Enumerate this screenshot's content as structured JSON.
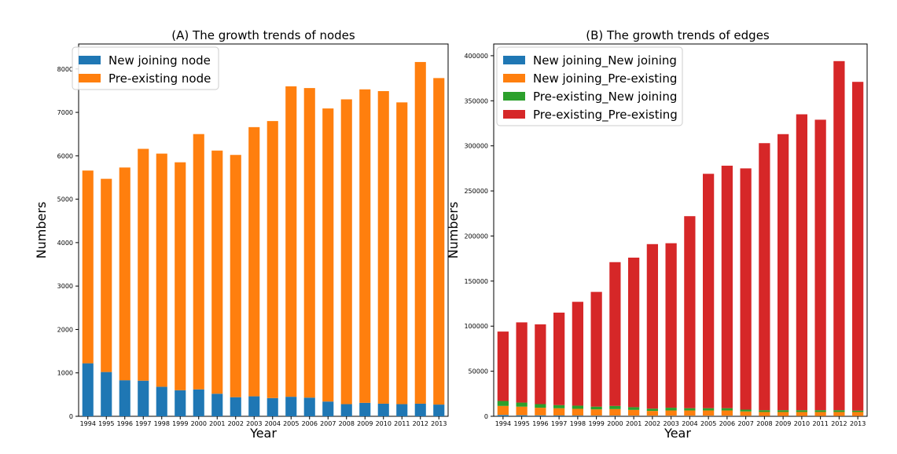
{
  "chart_data": [
    {
      "type": "bar",
      "stacked": true,
      "title": "(A) The growth trends of nodes",
      "xlabel": "Year",
      "ylabel": "Numbers",
      "ylim": [
        0,
        8575
      ],
      "yticks": [
        0,
        1000,
        2000,
        3000,
        4000,
        5000,
        6000,
        7000,
        8000
      ],
      "ytick_labels": [
        "0",
        "1000",
        "2000",
        "3000",
        "4000",
        "5000",
        "6000",
        "7000",
        "8000"
      ],
      "legend_position": "top-left",
      "categories": [
        "1994",
        "1995",
        "1996",
        "1997",
        "1998",
        "1999",
        "2000",
        "2001",
        "2002",
        "2003",
        "2004",
        "2005",
        "2006",
        "2007",
        "2008",
        "2009",
        "2010",
        "2011",
        "2012",
        "2013"
      ],
      "series": [
        {
          "name": "New joining node",
          "color": "#1f77b4",
          "values": [
            1220,
            1020,
            830,
            820,
            680,
            600,
            620,
            520,
            440,
            460,
            420,
            450,
            430,
            340,
            280,
            310,
            290,
            280,
            290,
            270
          ]
        },
        {
          "name": "Pre-existing node",
          "color": "#ff7f0e",
          "values": [
            4440,
            4450,
            4900,
            5340,
            5370,
            5250,
            5880,
            5600,
            5580,
            6200,
            6380,
            7150,
            7130,
            6750,
            7020,
            7220,
            7200,
            6950,
            7870,
            7520
          ]
        }
      ]
    },
    {
      "type": "bar",
      "stacked": true,
      "title": "(B) The growth trends of edges",
      "xlabel": "Year",
      "ylabel": "Numbers",
      "ylim": [
        0,
        413000
      ],
      "yticks": [
        0,
        50000,
        100000,
        150000,
        200000,
        250000,
        300000,
        350000,
        400000
      ],
      "ytick_labels": [
        "0",
        "50000",
        "100000",
        "150000",
        "200000",
        "250000",
        "300000",
        "350000",
        "400000"
      ],
      "legend_position": "top-left",
      "categories": [
        "1994",
        "1995",
        "1996",
        "1997",
        "1998",
        "1999",
        "2000",
        "2001",
        "2002",
        "2003",
        "2004",
        "2005",
        "2006",
        "2007",
        "2008",
        "2009",
        "2010",
        "2011",
        "2012",
        "2013"
      ],
      "series": [
        {
          "name": "New joining_New joining",
          "color": "#1f77b4",
          "values": [
            1500,
            1200,
            1000,
            900,
            800,
            700,
            700,
            600,
            500,
            500,
            500,
            500,
            500,
            400,
            300,
            300,
            300,
            300,
            300,
            300
          ]
        },
        {
          "name": "New joining_Pre-existing",
          "color": "#ff7f0e",
          "values": [
            10000,
            9500,
            8500,
            8000,
            7500,
            7000,
            7300,
            6500,
            5500,
            6000,
            6000,
            6000,
            6000,
            5000,
            4500,
            4500,
            4500,
            4500,
            4500,
            4500
          ]
        },
        {
          "name": "Pre-existing_New joining",
          "color": "#2ca02c",
          "values": [
            5500,
            4500,
            4000,
            3500,
            3500,
            3000,
            3500,
            3000,
            2500,
            3000,
            2500,
            2500,
            2500,
            2000,
            2000,
            2000,
            2000,
            2000,
            2000,
            1500
          ]
        },
        {
          "name": "Pre-existing_Pre-existing",
          "color": "#d62728",
          "values": [
            77000,
            89000,
            88500,
            102600,
            115200,
            127300,
            159500,
            165900,
            182500,
            182500,
            213000,
            260000,
            269000,
            267600,
            296200,
            306200,
            328200,
            322200,
            387200,
            364700
          ]
        }
      ]
    }
  ]
}
